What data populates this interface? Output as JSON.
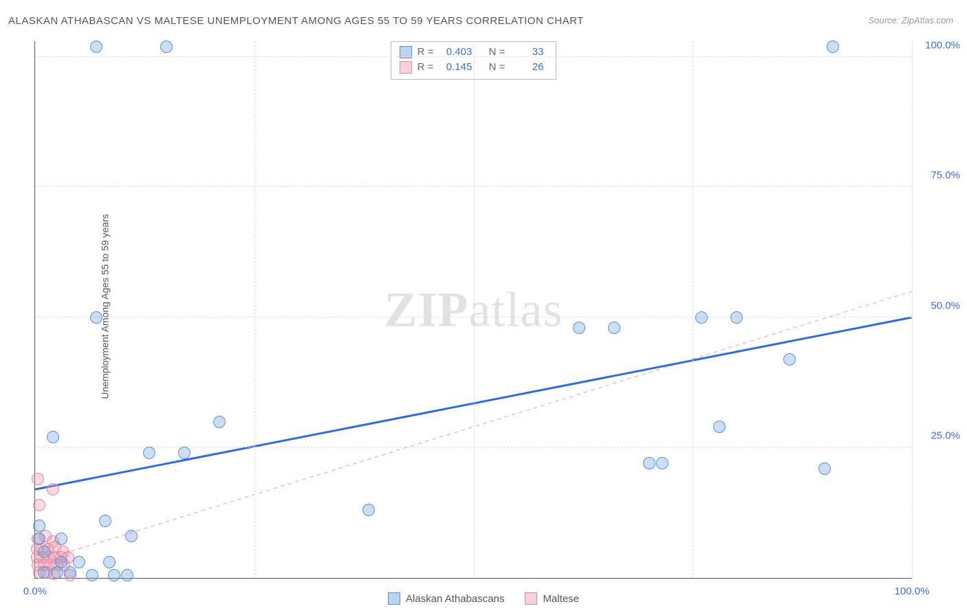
{
  "title": "ALASKAN ATHABASCAN VS MALTESE UNEMPLOYMENT AMONG AGES 55 TO 59 YEARS CORRELATION CHART",
  "source": "Source: ZipAtlas.com",
  "ylabel": "Unemployment Among Ages 55 to 59 years",
  "watermark_zip": "ZIP",
  "watermark_atlas": "atlas",
  "chart": {
    "type": "scatter",
    "xlim": [
      0,
      100
    ],
    "ylim": [
      0,
      103
    ],
    "xtick_labels": {
      "0": "0.0%",
      "100": "100.0%"
    },
    "ytick_labels": {
      "25": "25.0%",
      "50": "50.0%",
      "75": "75.0%",
      "100": "100.0%"
    },
    "grid_x": [
      25,
      50,
      75,
      100
    ],
    "grid_y": [
      25,
      50,
      75,
      100
    ],
    "grid_color": "#dddddd",
    "background_color": "#ffffff",
    "axis_color": "#555555",
    "tick_label_color": "#3b6fd6",
    "marker_size": 16,
    "series": [
      {
        "name": "Alaskan Athabascans",
        "color_fill": "rgba(108,160,220,0.35)",
        "color_stroke": "#5a8fd0",
        "css_class": "blue",
        "r_value": "0.403",
        "n_value": "33",
        "trend": {
          "x1": 0,
          "y1": 17,
          "x2": 100,
          "y2": 50,
          "stroke": "#2d6cdf",
          "width": 3,
          "dash": "none"
        },
        "points": [
          [
            7,
            102
          ],
          [
            15,
            102
          ],
          [
            91,
            102
          ],
          [
            7,
            50
          ],
          [
            76,
            50
          ],
          [
            80,
            50
          ],
          [
            62,
            48
          ],
          [
            66,
            48
          ],
          [
            86,
            42
          ],
          [
            21,
            30
          ],
          [
            78,
            29
          ],
          [
            2,
            27
          ],
          [
            13,
            24
          ],
          [
            17,
            24
          ],
          [
            70,
            22
          ],
          [
            71.5,
            22
          ],
          [
            90,
            21
          ],
          [
            38,
            13
          ],
          [
            0.5,
            10
          ],
          [
            8,
            11
          ],
          [
            0.5,
            7.5
          ],
          [
            3,
            7.5
          ],
          [
            11,
            8
          ],
          [
            1,
            5
          ],
          [
            3,
            3
          ],
          [
            5,
            3
          ],
          [
            8.5,
            3
          ],
          [
            1,
            1
          ],
          [
            2.5,
            1
          ],
          [
            4,
            1
          ],
          [
            6.5,
            0.5
          ],
          [
            9,
            0.5
          ],
          [
            10.5,
            0.5
          ]
        ]
      },
      {
        "name": "Maltese",
        "color_fill": "rgba(240,150,170,0.35)",
        "color_stroke": "#e08aa0",
        "css_class": "pink",
        "r_value": "0.145",
        "n_value": "26",
        "trend": {
          "x1": 0,
          "y1": 3,
          "x2": 100,
          "y2": 55,
          "stroke": "#e8a0b0",
          "width": 1,
          "dash": "6,5"
        },
        "points": [
          [
            0.3,
            19
          ],
          [
            2,
            17
          ],
          [
            0.5,
            14
          ],
          [
            0.3,
            7.5
          ],
          [
            1.2,
            8
          ],
          [
            2,
            7
          ],
          [
            0.2,
            5.5
          ],
          [
            0.8,
            5.5
          ],
          [
            1.5,
            5.5
          ],
          [
            2.3,
            6
          ],
          [
            3.2,
            5
          ],
          [
            0.2,
            4
          ],
          [
            0.9,
            4
          ],
          [
            1.6,
            4
          ],
          [
            2.3,
            4
          ],
          [
            3,
            4
          ],
          [
            3.8,
            4
          ],
          [
            0.3,
            2.5
          ],
          [
            1,
            2.5
          ],
          [
            1.8,
            2.5
          ],
          [
            2.5,
            2.5
          ],
          [
            3.3,
            2.5
          ],
          [
            0.5,
            1
          ],
          [
            1.3,
            1
          ],
          [
            2.2,
            0.8
          ],
          [
            4,
            0.5
          ]
        ]
      }
    ]
  },
  "stats_box": {
    "r_label": "R =",
    "n_label": "N ="
  },
  "legend": {
    "series1": "Alaskan Athabascans",
    "series2": "Maltese"
  }
}
